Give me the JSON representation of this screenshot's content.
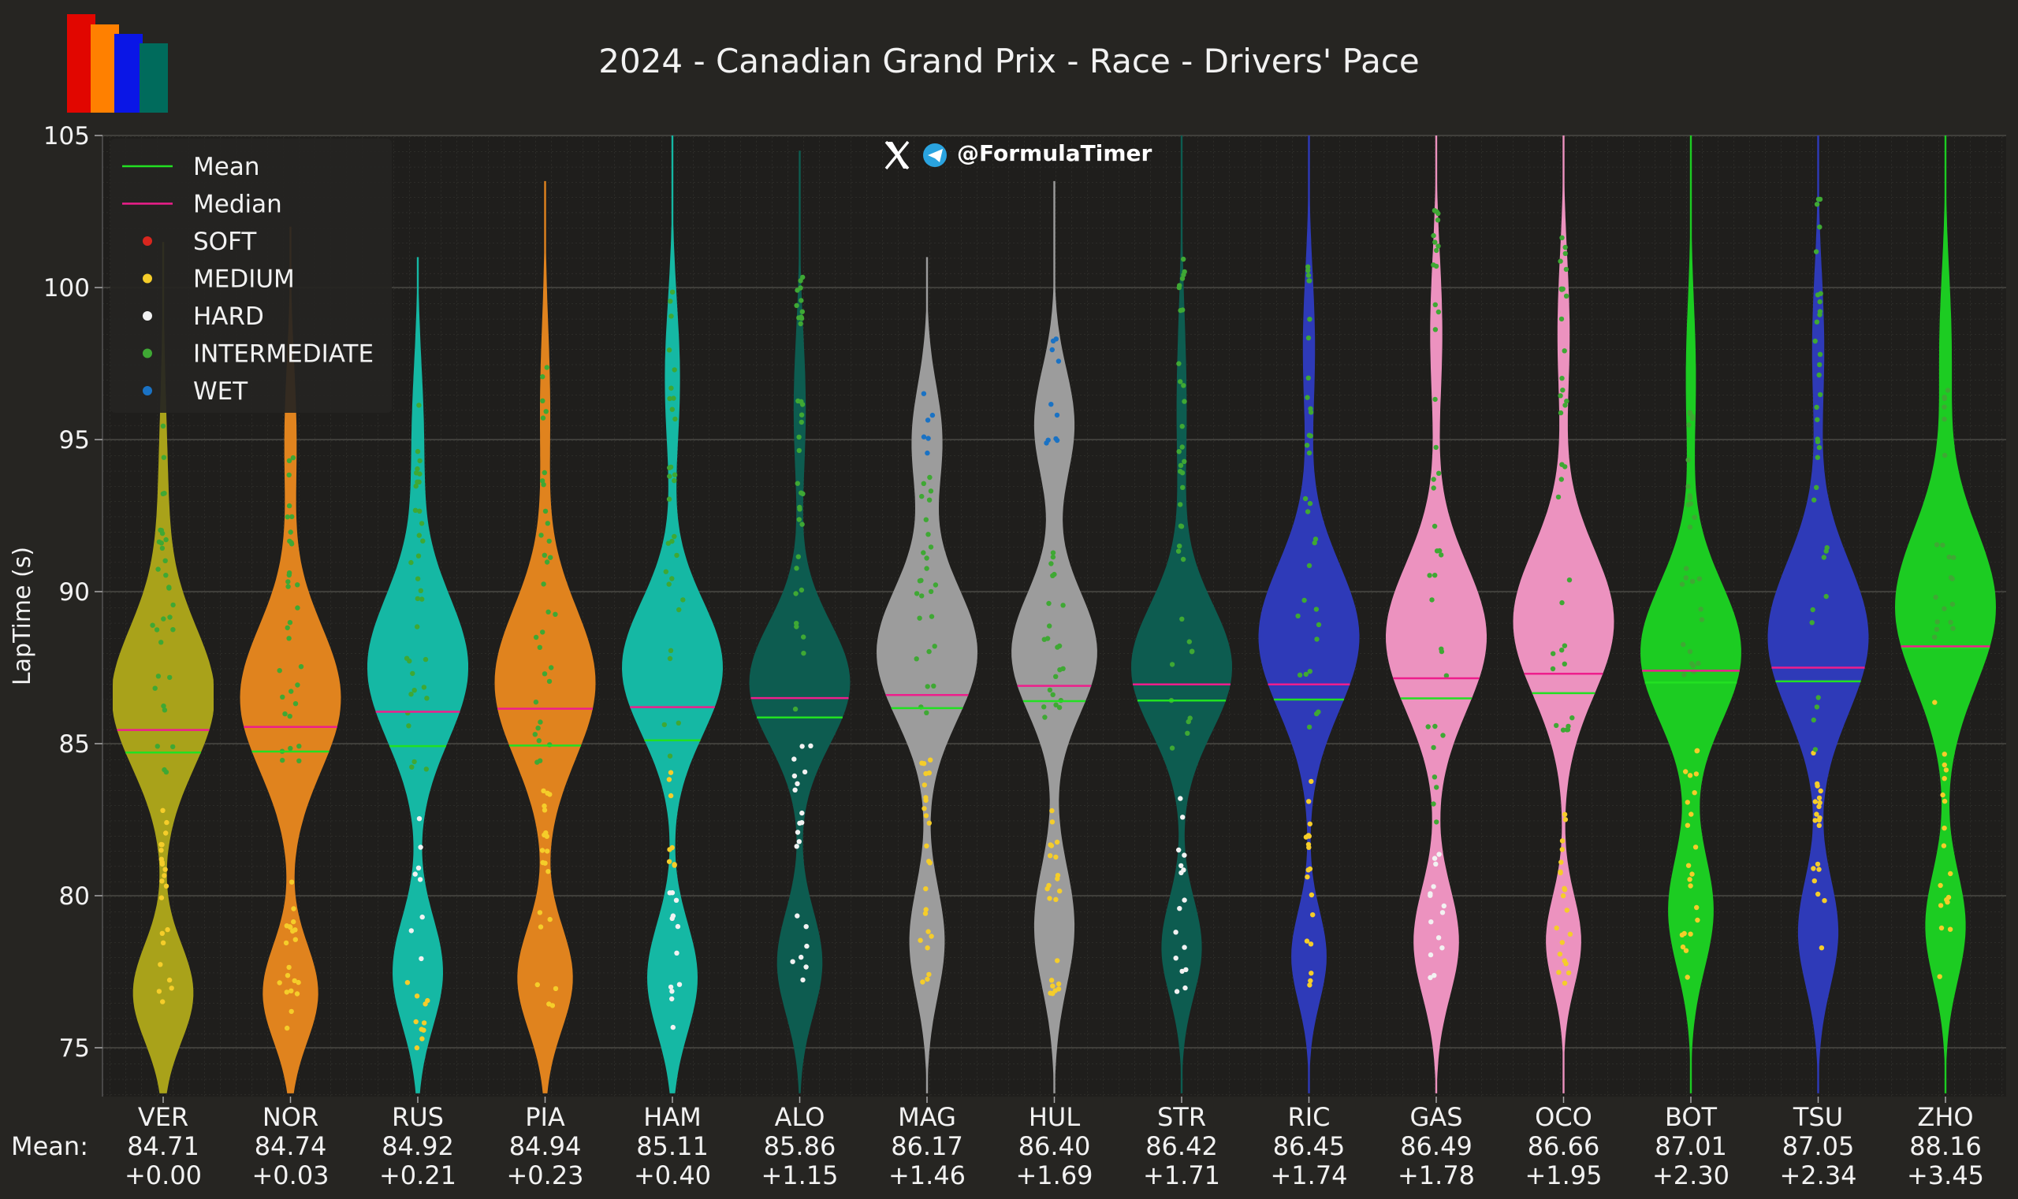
{
  "chart_data": {
    "type": "violin",
    "title": "2024 - Canadian Grand Prix - Race - Drivers' Pace",
    "watermark": "@FormulaTimer",
    "xlabel": "",
    "ylabel": "LapTime (s)",
    "ylim": [
      73.5,
      105
    ],
    "yticks": [
      75,
      80,
      85,
      90,
      95,
      100,
      105
    ],
    "grid": true,
    "legend_position": "top-left",
    "legend": [
      {
        "label": "Mean",
        "kind": "line",
        "color": "#22e022"
      },
      {
        "label": "Median",
        "kind": "line",
        "color": "#ee1e8c"
      },
      {
        "label": "SOFT",
        "kind": "dot",
        "color": "#d8261e"
      },
      {
        "label": "MEDIUM",
        "kind": "dot",
        "color": "#f5cd2a"
      },
      {
        "label": "HARD",
        "kind": "dot",
        "color": "#f2f2f2"
      },
      {
        "label": "INTERMEDIATE",
        "kind": "dot",
        "color": "#3fa834"
      },
      {
        "label": "WET",
        "kind": "dot",
        "color": "#1a72c4"
      }
    ],
    "mean_row_label": "Mean:",
    "drivers": [
      {
        "code": "VER",
        "color": "#a9a21a",
        "mean": 84.71,
        "median": 85.45,
        "mean_label": "84.71",
        "delta_label": "+0.00",
        "y_min": 73.5,
        "y_max": 101.5,
        "modes": [
          {
            "y": 76.8,
            "w": 0.6,
            "s": 1.6
          },
          {
            "y": 86.5,
            "w": 1.0,
            "s": 2.3
          },
          {
            "y": 92.5,
            "w": 0.1,
            "s": 3.5
          }
        ],
        "tyres": [
          {
            "c": "MEDIUM",
            "lo": 75.7,
            "hi": 83,
            "n": 22
          },
          {
            "c": "INTERMEDIATE",
            "lo": 83.9,
            "hi": 95.5,
            "n": 32
          }
        ]
      },
      {
        "code": "NOR",
        "color": "#e0831e",
        "mean": 84.74,
        "median": 85.55,
        "mean_label": "84.74",
        "delta_label": "+0.03",
        "y_min": 73.5,
        "y_max": 102.0,
        "modes": [
          {
            "y": 76.8,
            "w": 0.55,
            "s": 1.6
          },
          {
            "y": 86.5,
            "w": 1.0,
            "s": 2.4
          },
          {
            "y": 95,
            "w": 0.12,
            "s": 2.5
          }
        ],
        "tyres": [
          {
            "c": "MEDIUM",
            "lo": 75.6,
            "hi": 80.6,
            "n": 20
          },
          {
            "c": "INTERMEDIATE",
            "lo": 83.3,
            "hi": 95.2,
            "n": 32
          }
        ]
      },
      {
        "code": "RUS",
        "color": "#15b8a4",
        "mean": 84.92,
        "median": 86.05,
        "mean_label": "84.92",
        "delta_label": "+0.21",
        "y_min": 73.5,
        "y_max": 101.0,
        "modes": [
          {
            "y": 77.5,
            "w": 0.5,
            "s": 1.8
          },
          {
            "y": 87.5,
            "w": 1.0,
            "s": 2.4
          },
          {
            "y": 95,
            "w": 0.12,
            "s": 2.5
          }
        ],
        "tyres": [
          {
            "c": "MEDIUM",
            "lo": 74.9,
            "hi": 77.2,
            "n": 10
          },
          {
            "c": "HARD",
            "lo": 77.8,
            "hi": 83,
            "n": 8
          },
          {
            "c": "INTERMEDIATE",
            "lo": 83.6,
            "hi": 96.5,
            "n": 34
          }
        ]
      },
      {
        "code": "PIA",
        "color": "#e0831e",
        "mean": 84.94,
        "median": 86.15,
        "mean_label": "84.94",
        "delta_label": "+0.23",
        "y_min": 73.5,
        "y_max": 103.5,
        "modes": [
          {
            "y": 77.3,
            "w": 0.55,
            "s": 1.7
          },
          {
            "y": 87,
            "w": 1.0,
            "s": 2.5
          },
          {
            "y": 96,
            "w": 0.1,
            "s": 2.8
          }
        ],
        "tyres": [
          {
            "c": "MEDIUM",
            "lo": 76.2,
            "hi": 83.5,
            "n": 20
          },
          {
            "c": "INTERMEDIATE",
            "lo": 84.2,
            "hi": 98.5,
            "n": 32
          }
        ]
      },
      {
        "code": "HAM",
        "color": "#15b8a4",
        "mean": 85.11,
        "median": 86.2,
        "mean_label": "85.11",
        "delta_label": "+0.40",
        "y_min": 73.5,
        "y_max": 105.0,
        "modes": [
          {
            "y": 77.3,
            "w": 0.5,
            "s": 1.8
          },
          {
            "y": 87.5,
            "w": 1.0,
            "s": 2.2
          },
          {
            "y": 97,
            "w": 0.15,
            "s": 2.5
          }
        ],
        "tyres": [
          {
            "c": "HARD",
            "lo": 74.9,
            "hi": 80.3,
            "n": 12
          },
          {
            "c": "MEDIUM",
            "lo": 80.5,
            "hi": 84.2,
            "n": 8
          },
          {
            "c": "INTERMEDIATE",
            "lo": 84.5,
            "hi": 100.5,
            "n": 30
          }
        ]
      },
      {
        "code": "ALO",
        "color": "#0d5c50",
        "mean": 85.86,
        "median": 86.5,
        "mean_label": "85.86",
        "delta_label": "+1.15",
        "y_min": 73.5,
        "y_max": 104.5,
        "modes": [
          {
            "y": 77.8,
            "w": 0.45,
            "s": 1.7
          },
          {
            "y": 87,
            "w": 1.0,
            "s": 2.0
          },
          {
            "y": 96,
            "w": 0.12,
            "s": 2.5
          }
        ],
        "tyres": [
          {
            "c": "HARD",
            "lo": 76.2,
            "hi": 86,
            "n": 20
          },
          {
            "c": "INTERMEDIATE",
            "lo": 86,
            "hi": 100.5,
            "n": 34
          }
        ]
      },
      {
        "code": "MAG",
        "color": "#9c9c9c",
        "mean": 86.17,
        "median": 86.6,
        "mean_label": "86.17",
        "delta_label": "+1.46",
        "y_min": 73.5,
        "y_max": 101.0,
        "modes": [
          {
            "y": 78.5,
            "w": 0.35,
            "s": 1.8
          },
          {
            "y": 88,
            "w": 1.0,
            "s": 2.2
          },
          {
            "y": 95,
            "w": 0.3,
            "s": 1.8
          }
        ],
        "tyres": [
          {
            "c": "MEDIUM",
            "lo": 76.5,
            "hi": 85.0,
            "n": 24
          },
          {
            "c": "INTERMEDIATE",
            "lo": 86,
            "hi": 94,
            "n": 26
          },
          {
            "c": "WET",
            "lo": 94.3,
            "hi": 96.8,
            "n": 6
          }
        ]
      },
      {
        "code": "HUL",
        "color": "#9c9c9c",
        "mean": 86.4,
        "median": 86.9,
        "mean_label": "86.40",
        "delta_label": "+1.69",
        "y_min": 73.5,
        "y_max": 103.5,
        "modes": [
          {
            "y": 79,
            "w": 0.4,
            "s": 2.0
          },
          {
            "y": 88,
            "w": 0.85,
            "s": 2.0
          },
          {
            "y": 95.5,
            "w": 0.4,
            "s": 1.8
          }
        ],
        "tyres": [
          {
            "c": "MEDIUM",
            "lo": 76.7,
            "hi": 83.5,
            "n": 22
          },
          {
            "c": "INTERMEDIATE",
            "lo": 85.8,
            "hi": 91.4,
            "n": 22
          },
          {
            "c": "WET",
            "lo": 94.1,
            "hi": 98.6,
            "n": 10
          }
        ]
      },
      {
        "code": "STR",
        "color": "#0d5c50",
        "mean": 86.42,
        "median": 86.95,
        "mean_label": "86.42",
        "delta_label": "+1.71",
        "y_min": 73.5,
        "y_max": 105.0,
        "modes": [
          {
            "y": 78.3,
            "w": 0.4,
            "s": 1.6
          },
          {
            "y": 87.5,
            "w": 1.0,
            "s": 2.1
          },
          {
            "y": 96,
            "w": 0.1,
            "s": 3.0
          }
        ],
        "tyres": [
          {
            "c": "HARD",
            "lo": 76.7,
            "hi": 83.7,
            "n": 16
          },
          {
            "c": "INTERMEDIATE",
            "lo": 84.6,
            "hi": 101,
            "n": 36
          }
        ]
      },
      {
        "code": "RIC",
        "color": "#2e3ab8",
        "mean": 86.45,
        "median": 86.95,
        "mean_label": "86.45",
        "delta_label": "+1.74",
        "y_min": 73.5,
        "y_max": 105.0,
        "modes": [
          {
            "y": 78,
            "w": 0.35,
            "s": 1.5
          },
          {
            "y": 88.5,
            "w": 1.0,
            "s": 2.4
          },
          {
            "y": 98,
            "w": 0.12,
            "s": 2.5
          }
        ],
        "tyres": [
          {
            "c": "MEDIUM",
            "lo": 77,
            "hi": 84.4,
            "n": 18
          },
          {
            "c": "INTERMEDIATE",
            "lo": 85.5,
            "hi": 101.8,
            "n": 32
          }
        ]
      },
      {
        "code": "GAS",
        "color": "#ec92bf",
        "mean": 86.49,
        "median": 87.15,
        "mean_label": "86.49",
        "delta_label": "+1.78",
        "y_min": 73.5,
        "y_max": 105.0,
        "modes": [
          {
            "y": 78.5,
            "w": 0.45,
            "s": 1.8
          },
          {
            "y": 88.5,
            "w": 1.0,
            "s": 2.4
          },
          {
            "y": 98.5,
            "w": 0.12,
            "s": 2.5
          }
        ],
        "tyres": [
          {
            "c": "HARD",
            "lo": 77,
            "hi": 81.5,
            "n": 14
          },
          {
            "c": "INTERMEDIATE",
            "lo": 81.8,
            "hi": 103.3,
            "n": 36
          }
        ]
      },
      {
        "code": "OCO",
        "color": "#ec92bf",
        "mean": 86.66,
        "median": 87.3,
        "mean_label": "86.66",
        "delta_label": "+1.95",
        "y_min": 73.5,
        "y_max": 105.0,
        "modes": [
          {
            "y": 78.5,
            "w": 0.35,
            "s": 1.5
          },
          {
            "y": 89,
            "w": 1.0,
            "s": 2.4
          },
          {
            "y": 98.5,
            "w": 0.12,
            "s": 2.5
          }
        ],
        "tyres": [
          {
            "c": "MEDIUM",
            "lo": 77,
            "hi": 83,
            "n": 20
          },
          {
            "c": "INTERMEDIATE",
            "lo": 84.8,
            "hi": 103,
            "n": 34
          }
        ]
      },
      {
        "code": "BOT",
        "color": "#1ccc22",
        "mean": 87.01,
        "median": 87.4,
        "mean_label": "87.01",
        "delta_label": "+2.30",
        "y_min": 73.5,
        "y_max": 105.0,
        "modes": [
          {
            "y": 79.5,
            "w": 0.45,
            "s": 1.9
          },
          {
            "y": 88,
            "w": 1.0,
            "s": 2.3
          },
          {
            "y": 97,
            "w": 0.1,
            "s": 2.5
          }
        ],
        "tyres": [
          {
            "c": "MEDIUM",
            "lo": 77.2,
            "hi": 85.3,
            "n": 22
          },
          {
            "c": "INTERMEDIATE",
            "lo": 86.5,
            "hi": 96,
            "n": 28
          }
        ]
      },
      {
        "code": "TSU",
        "color": "#2e3ab8",
        "mean": 87.05,
        "median": 87.5,
        "mean_label": "87.05",
        "delta_label": "+2.34",
        "y_min": 73.5,
        "y_max": 105.0,
        "modes": [
          {
            "y": 78.8,
            "w": 0.4,
            "s": 1.8
          },
          {
            "y": 88.5,
            "w": 1.0,
            "s": 2.5
          },
          {
            "y": 98,
            "w": 0.12,
            "s": 2.5
          }
        ],
        "tyres": [
          {
            "c": "MEDIUM",
            "lo": 77.3,
            "hi": 84.7,
            "n": 20
          },
          {
            "c": "INTERMEDIATE",
            "lo": 84.5,
            "hi": 103,
            "n": 34
          }
        ]
      },
      {
        "code": "ZHO",
        "color": "#1ccc22",
        "mean": 88.16,
        "median": 88.2,
        "mean_label": "88.16",
        "delta_label": "+3.45",
        "y_min": 73.5,
        "y_max": 105.0,
        "modes": [
          {
            "y": 79,
            "w": 0.4,
            "s": 1.8
          },
          {
            "y": 89.5,
            "w": 1.0,
            "s": 2.6
          },
          {
            "y": 98,
            "w": 0.12,
            "s": 2.5
          }
        ],
        "tyres": [
          {
            "c": "MEDIUM",
            "lo": 77.3,
            "hi": 86.5,
            "n": 18
          },
          {
            "c": "INTERMEDIATE",
            "lo": 87.5,
            "hi": 96.8,
            "n": 20
          }
        ]
      }
    ]
  }
}
